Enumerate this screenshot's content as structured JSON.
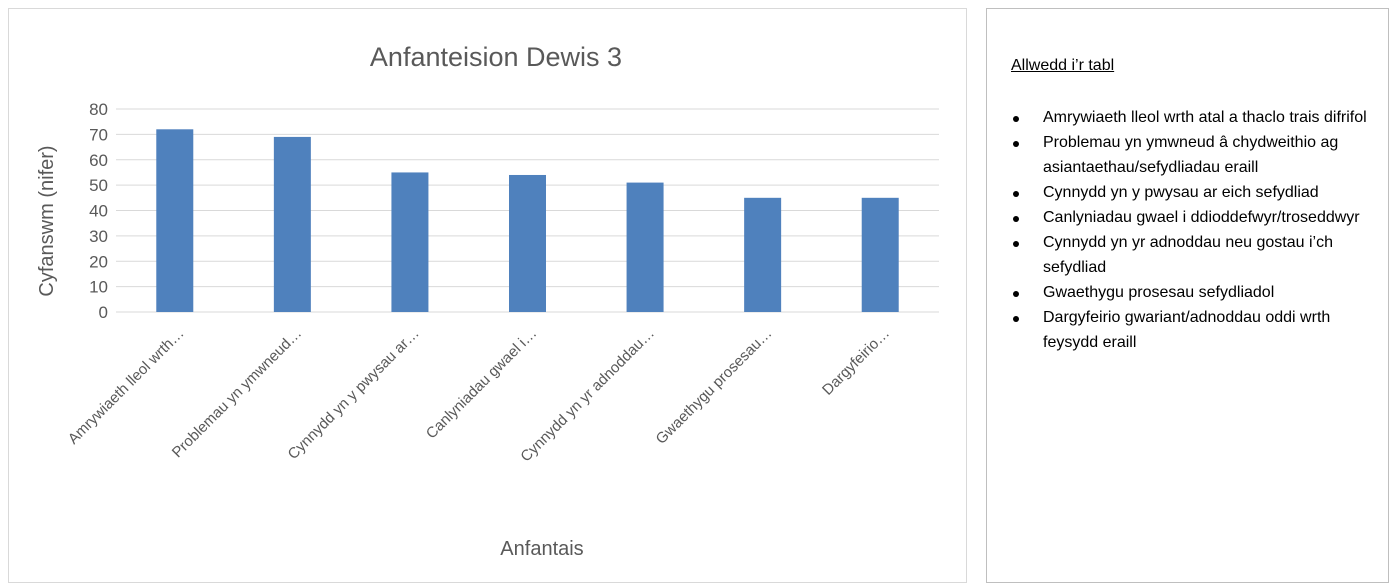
{
  "chart_data": {
    "type": "bar",
    "title": "Anfanteision Dewis 3",
    "xlabel": "Anfantais",
    "ylabel": "Cyfanswm (nifer)",
    "ylim": [
      0,
      80
    ],
    "yticks": [
      0,
      10,
      20,
      30,
      40,
      50,
      60,
      70,
      80
    ],
    "grid": true,
    "bar_color": "#4f81bd",
    "categories": [
      "Amrywiaeth lleol wrth…",
      "Problemau yn ymwneud…",
      "Cynnydd yn y pwysau ar…",
      "Canlyniadau gwael i…",
      "Cynnydd yn yr adnoddau…",
      "Gwaethygu prosesau…",
      "Dargyfeirio…"
    ],
    "values": [
      72,
      69,
      55,
      54,
      51,
      45,
      45
    ]
  },
  "key": {
    "title": "Allwedd i’r tabl",
    "items": [
      "Amrywiaeth lleol wrth atal a thaclo trais difrifol",
      "Problemau yn ymwneud â chydweithio ag asiantaethau/sefydliadau eraill",
      "Cynnydd yn y pwysau ar eich sefydliad",
      "Canlyniadau gwael i ddioddefwyr/troseddwyr",
      "Cynnydd yn yr adnoddau neu gostau i’ch sefydliad",
      "Gwaethygu prosesau sefydliadol",
      "Dargyfeirio gwariant/adnoddau oddi wrth feysydd eraill"
    ]
  }
}
